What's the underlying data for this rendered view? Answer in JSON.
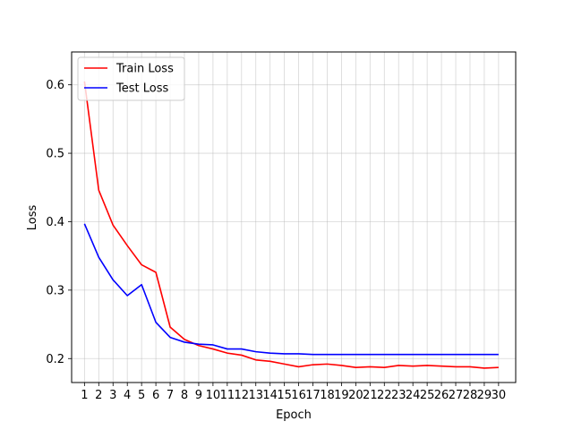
{
  "chart_data": {
    "type": "line",
    "title": "",
    "xlabel": "Epoch",
    "ylabel": "Loss",
    "x": [
      1,
      2,
      3,
      4,
      5,
      6,
      7,
      8,
      9,
      10,
      11,
      12,
      13,
      14,
      15,
      16,
      17,
      18,
      19,
      20,
      21,
      22,
      23,
      24,
      25,
      26,
      27,
      28,
      29,
      30
    ],
    "xlim": [
      0.1,
      31.2
    ],
    "ylim": [
      0.165,
      0.648
    ],
    "yticks": [
      0.2,
      0.3,
      0.4,
      0.5,
      0.6
    ],
    "ytick_labels": [
      "0.2",
      "0.3",
      "0.4",
      "0.5",
      "0.6"
    ],
    "grid": true,
    "legend_position": "top-left",
    "series": [
      {
        "name": "Train Loss",
        "color": "#ff0000",
        "values": [
          0.605,
          0.446,
          0.395,
          0.365,
          0.337,
          0.326,
          0.246,
          0.228,
          0.219,
          0.214,
          0.208,
          0.205,
          0.198,
          0.196,
          0.192,
          0.188,
          0.191,
          0.192,
          0.19,
          0.187,
          0.188,
          0.187,
          0.19,
          0.189,
          0.19,
          0.189,
          0.188,
          0.188,
          0.186,
          0.187
        ]
      },
      {
        "name": "Test Loss",
        "color": "#0000ff",
        "values": [
          0.397,
          0.348,
          0.315,
          0.292,
          0.308,
          0.253,
          0.231,
          0.224,
          0.221,
          0.22,
          0.214,
          0.214,
          0.21,
          0.208,
          0.207,
          0.207,
          0.206,
          0.206,
          0.206,
          0.206,
          0.206,
          0.206,
          0.206,
          0.206,
          0.206,
          0.206,
          0.206,
          0.206,
          0.206,
          0.206
        ]
      }
    ]
  }
}
